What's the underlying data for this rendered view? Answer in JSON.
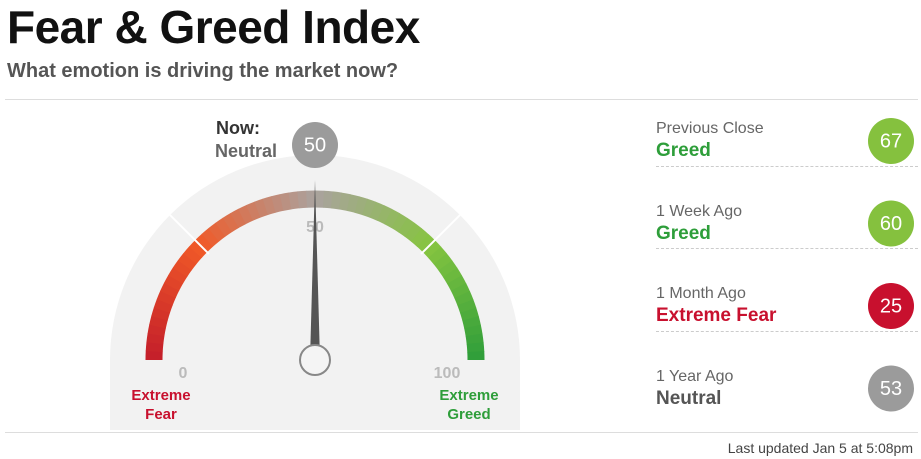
{
  "chart_data": {
    "type": "gauge",
    "title": "Fear & Greed Index",
    "subtitle": "What emotion is driving the market now?",
    "now_label": "Now:",
    "value": 50,
    "value_rating": "Neutral",
    "value_color": "#9b9b9b",
    "ylim": [
      0,
      100
    ],
    "yticks": [
      0,
      50,
      100
    ],
    "min_label": "Extreme Fear",
    "max_label": "Extreme Greed",
    "min_color": "#c8102e",
    "max_color": "#2e9e3a",
    "arc_colors": [
      "#c41e2a",
      "#f05a28",
      "#aaa29e",
      "#86c440",
      "#2e9e3a"
    ]
  },
  "history": [
    {
      "label": "Previous Close",
      "rating": "Greed",
      "value": 67,
      "color": "#85c13e",
      "rating_color": "#2e9e3a"
    },
    {
      "label": "1 Week Ago",
      "rating": "Greed",
      "value": 60,
      "color": "#85c13e",
      "rating_color": "#2e9e3a"
    },
    {
      "label": "1 Month Ago",
      "rating": "Extreme Fear",
      "value": 25,
      "color": "#c8102e",
      "rating_color": "#c8102e"
    },
    {
      "label": "1 Year Ago",
      "rating": "Neutral",
      "value": 53,
      "color": "#9b9b9b",
      "rating_color": "#555555"
    }
  ],
  "footer": "Last updated Jan 5 at 5:08pm"
}
